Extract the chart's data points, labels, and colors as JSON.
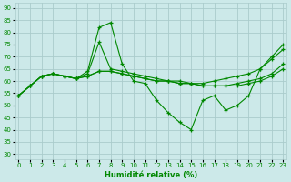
{
  "xlabel": "Humidité relative (%)",
  "background_color": "#cce9e9",
  "grid_color": "#aacccc",
  "line_color": "#008800",
  "xlim": [
    0,
    23
  ],
  "ylim": [
    28,
    92
  ],
  "yticks": [
    30,
    35,
    40,
    45,
    50,
    55,
    60,
    65,
    70,
    75,
    80,
    85,
    90
  ],
  "xticks": [
    0,
    1,
    2,
    3,
    4,
    5,
    6,
    7,
    8,
    9,
    10,
    11,
    12,
    13,
    14,
    15,
    16,
    17,
    18,
    19,
    20,
    21,
    22,
    23
  ],
  "lines": [
    [
      54,
      58,
      62,
      63,
      62,
      61,
      64,
      82,
      84,
      67,
      60,
      59,
      52,
      47,
      43,
      40,
      52,
      54,
      48,
      50,
      54,
      65,
      70,
      75
    ],
    [
      54,
      58,
      62,
      63,
      62,
      61,
      63,
      76,
      65,
      64,
      63,
      62,
      61,
      60,
      60,
      59,
      59,
      60,
      61,
      62,
      63,
      65,
      69,
      73
    ],
    [
      54,
      58,
      62,
      63,
      62,
      61,
      62,
      64,
      64,
      63,
      62,
      61,
      60,
      60,
      59,
      59,
      58,
      58,
      58,
      58,
      59,
      60,
      62,
      65
    ],
    [
      54,
      58,
      62,
      63,
      62,
      61,
      62,
      64,
      64,
      63,
      62,
      61,
      60,
      60,
      59,
      59,
      58,
      58,
      58,
      59,
      60,
      61,
      63,
      67
    ]
  ]
}
